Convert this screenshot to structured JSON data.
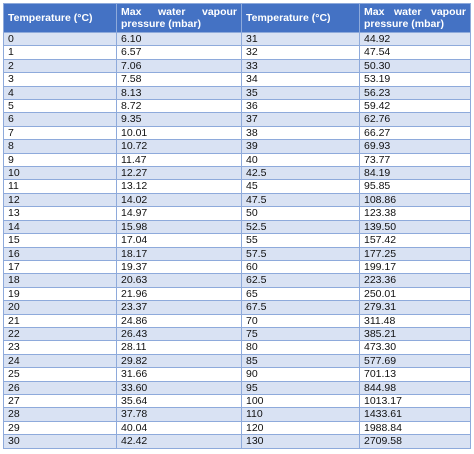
{
  "header": {
    "col1": "Temperature (°C)",
    "col2_line1": "Max water vapour",
    "col2_line2": "pressure (mbar)",
    "col3": "Temperature (°C)",
    "col4_line1": "Max water vapour",
    "col4_line2": "pressure (mbar)"
  },
  "rows": [
    [
      "0",
      "6.10",
      "31",
      "44.92"
    ],
    [
      "1",
      "6.57",
      "32",
      "47.54"
    ],
    [
      "2",
      "7.06",
      "33",
      "50.30"
    ],
    [
      "3",
      "7.58",
      "34",
      "53.19"
    ],
    [
      "4",
      "8.13",
      "35",
      "56.23"
    ],
    [
      "5",
      "8.72",
      "36",
      "59.42"
    ],
    [
      "6",
      "9.35",
      "37",
      "62.76"
    ],
    [
      "7",
      "10.01",
      "38",
      "66.27"
    ],
    [
      "8",
      "10.72",
      "39",
      "69.93"
    ],
    [
      "9",
      "11.47",
      "40",
      "73.77"
    ],
    [
      "10",
      "12.27",
      "42.5",
      "84.19"
    ],
    [
      "11",
      "13.12",
      "45",
      "95.85"
    ],
    [
      "12",
      "14.02",
      "47.5",
      "108.86"
    ],
    [
      "13",
      "14.97",
      "50",
      "123.38"
    ],
    [
      "14",
      "15.98",
      "52.5",
      "139.50"
    ],
    [
      "15",
      "17.04",
      "55",
      "157.42"
    ],
    [
      "16",
      "18.17",
      "57.5",
      "177.25"
    ],
    [
      "17",
      "19.37",
      "60",
      "199.17"
    ],
    [
      "18",
      "20.63",
      "62.5",
      "223.36"
    ],
    [
      "19",
      "21.96",
      "65",
      "250.01"
    ],
    [
      "20",
      "23.37",
      "67.5",
      "279.31"
    ],
    [
      "21",
      "24.86",
      "70",
      "311.48"
    ],
    [
      "22",
      "26.43",
      "75",
      "385.21"
    ],
    [
      "23",
      "28.11",
      "80",
      "473.30"
    ],
    [
      "24",
      "29.82",
      "85",
      "577.69"
    ],
    [
      "25",
      "31.66",
      "90",
      "701.13"
    ],
    [
      "26",
      "33.60",
      "95",
      "844.98"
    ],
    [
      "27",
      "35.64",
      "100",
      "1013.17"
    ],
    [
      "28",
      "37.78",
      "110",
      "1433.61"
    ],
    [
      "29",
      "40.04",
      "120",
      "1988.84"
    ],
    [
      "30",
      "42.42",
      "130",
      "2709.58"
    ]
  ]
}
